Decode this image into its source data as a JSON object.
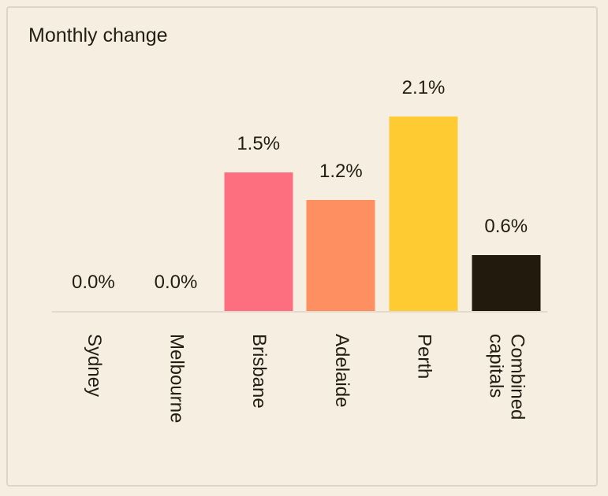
{
  "title": "Monthly change",
  "colors": {
    "background": "#f6eee1",
    "card_border": "#ddd5c7",
    "axis_line": "#e2dacd",
    "text": "#221d13"
  },
  "chart_data": {
    "type": "bar",
    "title": "Monthly change",
    "categories": [
      "Sydney",
      "Melbourne",
      "Brisbane",
      "Adelaide",
      "Perth",
      "Combined\ncapitals"
    ],
    "values": [
      0.0,
      0.0,
      1.5,
      1.2,
      2.1,
      0.6
    ],
    "value_labels": [
      "0.0%",
      "0.0%",
      "1.5%",
      "1.2%",
      "2.1%",
      "0.6%"
    ],
    "bar_colors": [
      "",
      "",
      "#fd6e7e",
      "#fe8f60",
      "#fecb32",
      "#211a0d"
    ],
    "xlabel": "",
    "ylabel": "",
    "unit": "percent",
    "ylim": [
      0,
      2.5
    ],
    "grid": false,
    "legend": false,
    "value_labels_position": "above-bars",
    "category_labels_orientation": "rotated-90-clockwise"
  }
}
